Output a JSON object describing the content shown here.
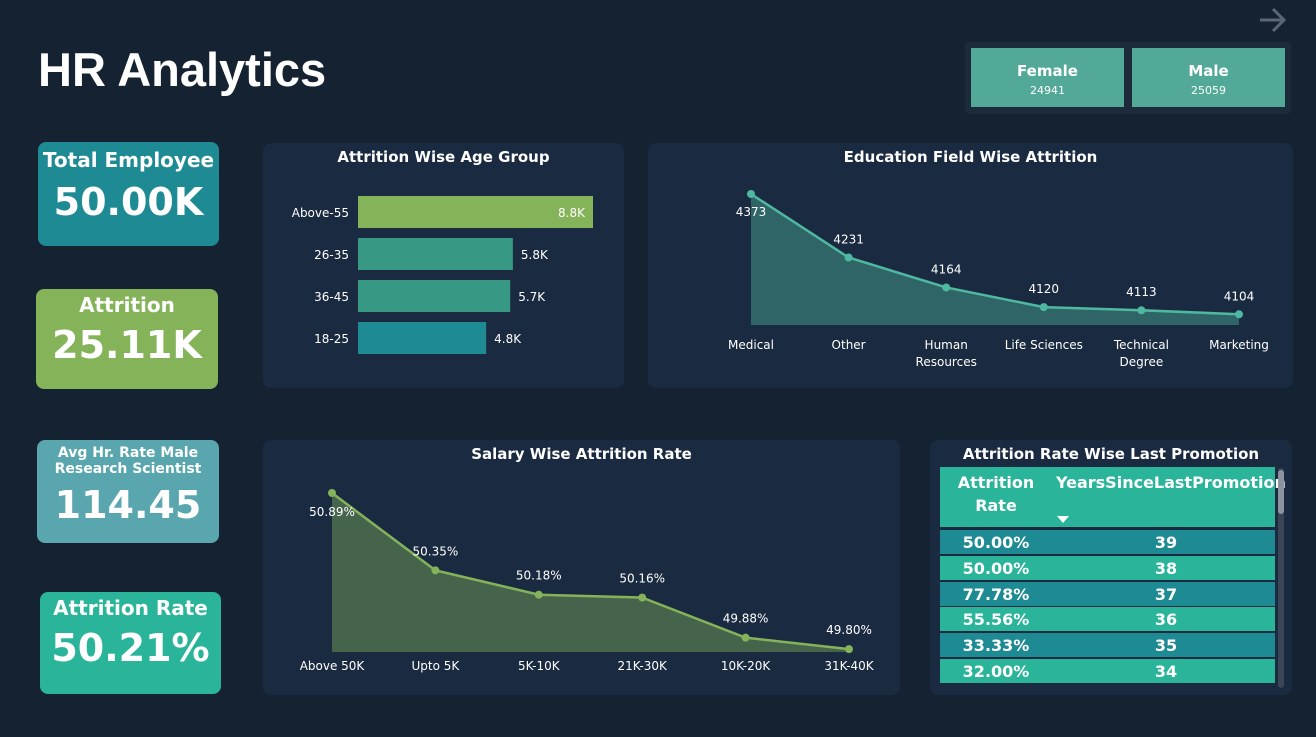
{
  "header": {
    "title": "HR Analytics"
  },
  "gender": [
    {
      "label": "Female",
      "value": "24941"
    },
    {
      "label": "Male",
      "value": "25059"
    }
  ],
  "kpis": {
    "total_employee": {
      "label": "Total Employee",
      "value": "50.00K",
      "color": "#1e8a94"
    },
    "attrition": {
      "label": "Attrition",
      "value": "25.11K",
      "color": "#84b35a"
    },
    "avg_rate": {
      "label_line1": "Avg Hr. Rate Male",
      "label_line2": "Research Scientist",
      "value": "114.45",
      "color": "#59a6ae"
    },
    "attrition_rate": {
      "label": "Attrition Rate",
      "value": "50.21%",
      "color": "#2ab59a"
    }
  },
  "panels": {
    "age": {
      "title": "Attrition Wise Age Group"
    },
    "education": {
      "title": "Education Field Wise Attrition"
    },
    "salary": {
      "title": "Salary Wise Attrition Rate"
    },
    "promotion": {
      "title": "Attrition Rate Wise Last Promotion"
    }
  },
  "chart_data": [
    {
      "type": "bar",
      "title": "Attrition Wise Age Group",
      "orientation": "horizontal",
      "categories": [
        "Above-55",
        "26-35",
        "36-45",
        "18-25"
      ],
      "values": [
        8.8,
        5.8,
        5.7,
        4.8
      ],
      "data_labels": [
        "8.8K",
        "5.8K",
        "5.7K",
        "4.8K"
      ],
      "bar_colors": [
        "#84b35a",
        "#379883",
        "#379883",
        "#1e8a94"
      ],
      "xlim": [
        0,
        8.8
      ]
    },
    {
      "type": "area",
      "title": "Education Field Wise Attrition",
      "categories": [
        [
          "Medical"
        ],
        [
          "Other"
        ],
        [
          "Human",
          "Resources"
        ],
        [
          "Life Sciences"
        ],
        [
          "Technical",
          "Degree"
        ],
        [
          "Marketing"
        ]
      ],
      "values": [
        4373,
        4231,
        4164,
        4120,
        4113,
        4104
      ],
      "data_labels": [
        "4373",
        "4231",
        "4164",
        "4120",
        "4113",
        "4104"
      ],
      "ylim": [
        4080,
        4373
      ],
      "color": "#4fb8a0"
    },
    {
      "type": "area",
      "title": "Salary Wise Attrition Rate",
      "categories": [
        "Above 50K",
        "Upto 5K",
        "5K-10K",
        "21K-30K",
        "10K-20K",
        "31K-40K"
      ],
      "values": [
        50.89,
        50.35,
        50.18,
        50.16,
        49.88,
        49.8
      ],
      "data_labels": [
        "50.89%",
        "50.35%",
        "50.18%",
        "50.16%",
        "49.88%",
        "49.80%"
      ],
      "ylim": [
        49.78,
        50.89
      ],
      "color": "#84b35a"
    },
    {
      "type": "table",
      "title": "Attrition Rate Wise Last Promotion",
      "columns": [
        [
          "Attrition",
          "Rate"
        ],
        [
          "YearsSinceLastPromotion"
        ]
      ],
      "rows": [
        [
          "50.00%",
          "39"
        ],
        [
          "50.00%",
          "38"
        ],
        [
          "77.78%",
          "37"
        ],
        [
          "55.56%",
          "36"
        ],
        [
          "33.33%",
          "35"
        ],
        [
          "32.00%",
          "34"
        ]
      ],
      "row_colors": [
        "#1e8a94",
        "#2ab59a"
      ],
      "header_color": "#2ab59a"
    }
  ]
}
